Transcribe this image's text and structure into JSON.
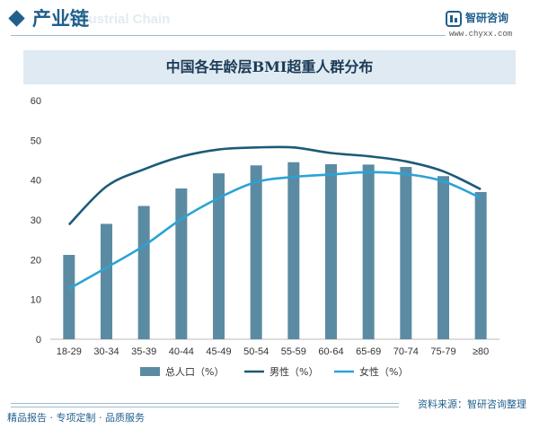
{
  "header": {
    "section_title": "产业链",
    "watermark": "Industrial Chain",
    "brand_name": "智研咨询",
    "brand_url": "www.chyxx.com"
  },
  "footer": {
    "source": "资料来源：智研咨询整理",
    "slogan": "精品报告 · 专项定制 · 品质服务"
  },
  "colors": {
    "bar": "#5b8ba3",
    "male_line": "#1c5a78",
    "female_line": "#2aa3d6",
    "brand": "#1f5f8c"
  },
  "chart_data": {
    "type": "bar",
    "title": "中国各年龄层BMI超重人群分布",
    "categories": [
      "18-29",
      "30-34",
      "35-39",
      "40-44",
      "45-49",
      "50-54",
      "55-59",
      "60-64",
      "65-69",
      "70-74",
      "75-79",
      "≥80"
    ],
    "ylim": [
      0,
      60
    ],
    "yticks": [
      0,
      10,
      20,
      30,
      40,
      50,
      60
    ],
    "grid": false,
    "legend_position": "bottom",
    "series": [
      {
        "name": "总人口（%）",
        "type": "bar",
        "values": [
          21.2,
          29.0,
          33.5,
          37.9,
          41.7,
          43.7,
          44.5,
          44.0,
          43.9,
          43.3,
          41.0,
          37.0
        ]
      },
      {
        "name": "男性（%）",
        "type": "line",
        "values": [
          28.8,
          38.4,
          42.7,
          45.9,
          47.7,
          48.2,
          48.2,
          46.8,
          46.0,
          44.7,
          42.2,
          37.7
        ]
      },
      {
        "name": "女性（%）",
        "type": "line",
        "values": [
          12.7,
          18.0,
          23.5,
          30.2,
          35.5,
          39.5,
          40.8,
          41.4,
          42.0,
          41.5,
          39.7,
          35.5
        ]
      }
    ]
  }
}
